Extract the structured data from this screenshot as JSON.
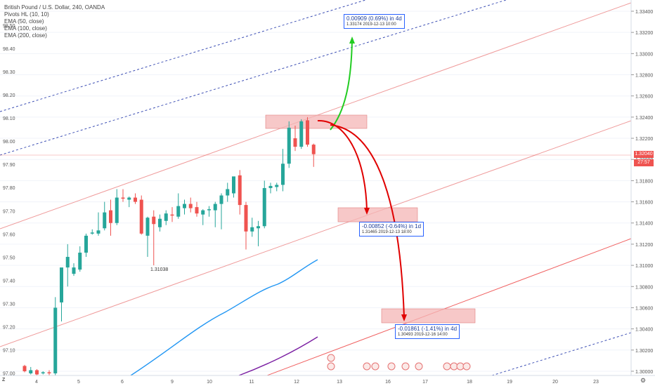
{
  "legend": {
    "title": "British Pound / U.S. Dollar, 240, OANDA",
    "indicators": [
      "Pivots HL (10, 10)",
      "EMA (50, close)",
      "EMA (100, close)",
      "EMA (200, close)"
    ]
  },
  "chart_data": {
    "type": "candlestick",
    "symbol": "GBPUSD",
    "interval": "240",
    "left_axis": {
      "label_values": [
        "98.50",
        "98.40",
        "98.30",
        "98.20",
        "98.10",
        "98.00",
        "97.90",
        "97.80",
        "97.70",
        "97.60",
        "97.50",
        "97.40",
        "97.30",
        "97.20",
        "97.10",
        "97.00"
      ],
      "range": [
        96.99,
        98.56
      ]
    },
    "right_axis": {
      "label_values": [
        "1.33400",
        "1.33200",
        "1.33000",
        "1.32800",
        "1.32600",
        "1.32400",
        "1.32200",
        "1.32000",
        "1.31800",
        "1.31600",
        "1.31400",
        "1.31200",
        "1.31000",
        "1.30800",
        "1.30600",
        "1.30400",
        "1.30200",
        "1.30000"
      ],
      "range": [
        1.29959,
        1.3347
      ]
    },
    "x_ticks": [
      "4",
      "5",
      "6",
      "9",
      "10",
      "11",
      "12",
      "13",
      "16",
      "17",
      "18",
      "19",
      "20",
      "23"
    ],
    "current_price": "1.32040",
    "countdown": "27:57",
    "pivot_label": "1.31038",
    "candles": [
      {
        "o": 1.3005,
        "h": 1.3006,
        "l": 1.2999,
        "c": 1.3
      },
      {
        "o": 1.2998,
        "h": 1.3004,
        "l": 1.2997,
        "c": 1.3001
      },
      {
        "o": 1.3001,
        "h": 1.3002,
        "l": 1.2996,
        "c": 1.2997
      },
      {
        "o": 1.2998,
        "h": 1.3,
        "l": 1.2997,
        "c": 1.2999
      },
      {
        "o": 1.2999,
        "h": 1.3001,
        "l": 1.2996,
        "c": 1.2998
      },
      {
        "o": 1.2998,
        "h": 1.307,
        "l": 1.2996,
        "c": 1.306
      },
      {
        "o": 1.3065,
        "h": 1.308,
        "l": 1.3047,
        "c": 1.3098
      },
      {
        "o": 1.3098,
        "h": 1.312,
        "l": 1.308,
        "c": 1.3108
      },
      {
        "o": 1.3092,
        "h": 1.3102,
        "l": 1.309,
        "c": 1.3098
      },
      {
        "o": 1.3096,
        "h": 1.3118,
        "l": 1.3094,
        "c": 1.3112
      },
      {
        "o": 1.3112,
        "h": 1.313,
        "l": 1.3108,
        "c": 1.3128
      },
      {
        "o": 1.313,
        "h": 1.3134,
        "l": 1.3129,
        "c": 1.3131
      },
      {
        "o": 1.313,
        "h": 1.315,
        "l": 1.3128,
        "c": 1.3133
      },
      {
        "o": 1.3135,
        "h": 1.316,
        "l": 1.3133,
        "c": 1.315
      },
      {
        "o": 1.3152,
        "h": 1.3162,
        "l": 1.3128,
        "c": 1.314
      },
      {
        "o": 1.314,
        "h": 1.3172,
        "l": 1.3138,
        "c": 1.3164
      },
      {
        "o": 1.3164,
        "h": 1.3172,
        "l": 1.316,
        "c": 1.3163
      },
      {
        "o": 1.3162,
        "h": 1.3165,
        "l": 1.3155,
        "c": 1.3164
      },
      {
        "o": 1.3164,
        "h": 1.3168,
        "l": 1.3158,
        "c": 1.316
      },
      {
        "o": 1.3162,
        "h": 1.3166,
        "l": 1.3129,
        "c": 1.313
      },
      {
        "o": 1.3128,
        "h": 1.3146,
        "l": 1.3108,
        "c": 1.3145
      },
      {
        "o": 1.3146,
        "h": 1.3152,
        "l": 1.31,
        "c": 1.3139
      },
      {
        "o": 1.3136,
        "h": 1.3148,
        "l": 1.3132,
        "c": 1.3144
      },
      {
        "o": 1.3142,
        "h": 1.3152,
        "l": 1.3138,
        "c": 1.3149
      },
      {
        "o": 1.3148,
        "h": 1.3155,
        "l": 1.3141,
        "c": 1.3147
      },
      {
        "o": 1.3146,
        "h": 1.3168,
        "l": 1.3144,
        "c": 1.3156
      },
      {
        "o": 1.3154,
        "h": 1.3162,
        "l": 1.3148,
        "c": 1.3158
      },
      {
        "o": 1.3158,
        "h": 1.3164,
        "l": 1.315,
        "c": 1.3154
      },
      {
        "o": 1.3155,
        "h": 1.316,
        "l": 1.3146,
        "c": 1.3149
      },
      {
        "o": 1.3148,
        "h": 1.3153,
        "l": 1.3138,
        "c": 1.3152
      },
      {
        "o": 1.3152,
        "h": 1.3156,
        "l": 1.3146,
        "c": 1.3153
      },
      {
        "o": 1.3152,
        "h": 1.316,
        "l": 1.3136,
        "c": 1.3158
      },
      {
        "o": 1.3158,
        "h": 1.3168,
        "l": 1.3134,
        "c": 1.3166
      },
      {
        "o": 1.3166,
        "h": 1.3178,
        "l": 1.316,
        "c": 1.3172
      },
      {
        "o": 1.3168,
        "h": 1.3183,
        "l": 1.3164,
        "c": 1.3184
      },
      {
        "o": 1.3185,
        "h": 1.319,
        "l": 1.3148,
        "c": 1.3157
      },
      {
        "o": 1.3157,
        "h": 1.316,
        "l": 1.3115,
        "c": 1.3132
      },
      {
        "o": 1.3132,
        "h": 1.3145,
        "l": 1.3127,
        "c": 1.3136
      },
      {
        "o": 1.3135,
        "h": 1.3142,
        "l": 1.3118,
        "c": 1.3137
      },
      {
        "o": 1.3137,
        "h": 1.318,
        "l": 1.3135,
        "c": 1.3173
      },
      {
        "o": 1.3173,
        "h": 1.3178,
        "l": 1.3168,
        "c": 1.3175
      },
      {
        "o": 1.3174,
        "h": 1.3178,
        "l": 1.317,
        "c": 1.3176
      },
      {
        "o": 1.3176,
        "h": 1.321,
        "l": 1.317,
        "c": 1.3196
      },
      {
        "o": 1.3196,
        "h": 1.3236,
        "l": 1.3192,
        "c": 1.323
      },
      {
        "o": 1.322,
        "h": 1.3232,
        "l": 1.3208,
        "c": 1.3212
      },
      {
        "o": 1.3212,
        "h": 1.3238,
        "l": 1.321,
        "c": 1.3236
      },
      {
        "o": 1.3237,
        "h": 1.324,
        "l": 1.3212,
        "c": 1.3214
      },
      {
        "o": 1.3214,
        "h": 1.3215,
        "l": 1.3193,
        "c": 1.3205
      }
    ],
    "ema_series": [
      {
        "name": "EMA (50, close)",
        "color": "#2196f3"
      },
      {
        "name": "EMA (100, close)",
        "color": "#7b1fa2"
      },
      {
        "name": "EMA (200, close)",
        "color": "#e53935"
      }
    ],
    "projections": [
      {
        "text": "0.00909 (0.69%) in 4d",
        "sub": "1.33174   2019-12-13 10:00",
        "color": "#22cc22"
      },
      {
        "text": "-0.00852 (-0.64%) in 1d",
        "sub": "1.31465   2019-12-13 18:00",
        "color": "#e00000"
      },
      {
        "text": "-0.01861 (-1.41%) in 4d",
        "sub": "1.30493   2019-12-16 14:00",
        "color": "#e00000"
      }
    ]
  },
  "colors": {
    "up": "#26a69a",
    "down": "#ef5350",
    "channel": "#ef9a9a",
    "zone": "#f4b6b6",
    "dashed": "#3f51b5"
  }
}
